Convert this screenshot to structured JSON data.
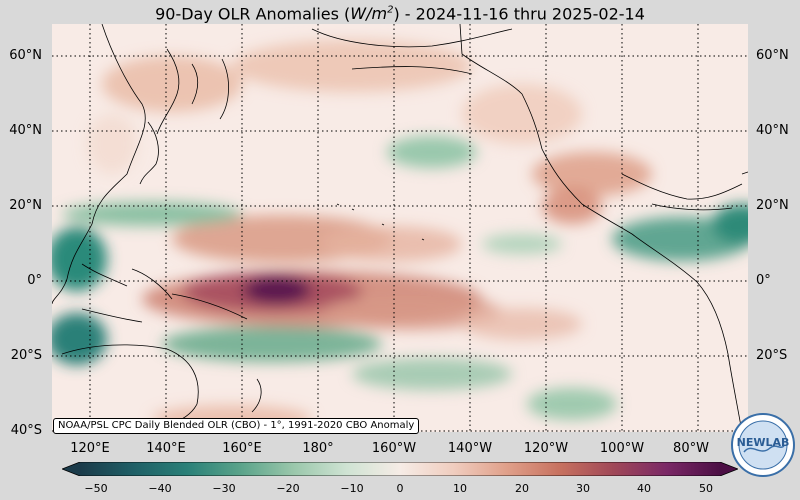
{
  "title_prefix": "90-Day OLR Anomalies (",
  "title_unit_base": "W/m",
  "title_unit_exp": "2",
  "title_suffix": ") - 2024-11-16 thru 2025-02-14",
  "credit": "NOAA/PSL CPC Daily Blended OLR (CBO) - 1°, 1991-2020 CBO Anomaly",
  "logo_text": "NEWLAB",
  "lat_labels": [
    "60°N",
    "40°N",
    "20°N",
    "0°",
    "20°S",
    "40°S"
  ],
  "lon_labels": [
    "120°E",
    "140°E",
    "160°E",
    "180°",
    "160°W",
    "140°W",
    "120°W",
    "100°W",
    "80°W"
  ],
  "colorbar": {
    "ticks": [
      "−50",
      "−40",
      "−30",
      "−20",
      "−10",
      "0",
      "10",
      "20",
      "30",
      "40",
      "50"
    ],
    "min": -50,
    "max": 50,
    "colors": [
      "#1b3b4a",
      "#1f5f66",
      "#2a8078",
      "#5aa38a",
      "#9ac7ab",
      "#cfe3d3",
      "#f6ece6",
      "#f0cdbf",
      "#e0a08a",
      "#c7715f",
      "#a04858",
      "#7a2866",
      "#4c0f45"
    ]
  },
  "colors": {
    "background": "#d9d9d9",
    "ocean_base": "#f8ebe6",
    "positive": "#b55a55",
    "strong_positive": "#5a1450",
    "negative": "#2e8a78",
    "strong_negative": "#1f6a6a"
  }
}
